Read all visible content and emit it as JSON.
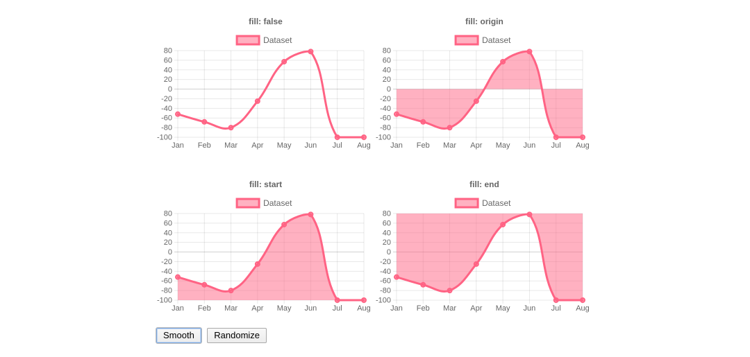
{
  "toolbar": {
    "smooth_label": "Smooth",
    "randomize_label": "Randomize"
  },
  "colors": {
    "line": "#ff6384",
    "fill": "rgba(255, 99, 132, 0.5)",
    "point_fill": "rgba(255, 99, 132, 0.55)",
    "grid": "rgba(0, 0, 0, 0.09)",
    "zero_line": "rgba(0, 0, 0, 0.18)",
    "text": "#666666"
  },
  "chart_data": [
    {
      "type": "line",
      "title": "fill: false",
      "fill_mode": "false",
      "legend": [
        "Dataset"
      ],
      "legend_position": "top",
      "categories": [
        "Jan",
        "Feb",
        "Mar",
        "Apr",
        "May",
        "Jun",
        "Jul",
        "Aug"
      ],
      "series": [
        {
          "name": "Dataset",
          "values": [
            -52,
            -68,
            -80,
            -25,
            57,
            78,
            -100,
            -100
          ]
        }
      ],
      "ylim": [
        -100,
        80
      ],
      "yticks": [
        80,
        60,
        40,
        20,
        0,
        -20,
        -40,
        -60,
        -80,
        -100
      ],
      "grid": true,
      "smooth": true
    },
    {
      "type": "line",
      "title": "fill: origin",
      "fill_mode": "origin",
      "legend": [
        "Dataset"
      ],
      "legend_position": "top",
      "categories": [
        "Jan",
        "Feb",
        "Mar",
        "Apr",
        "May",
        "Jun",
        "Jul",
        "Aug"
      ],
      "series": [
        {
          "name": "Dataset",
          "values": [
            -52,
            -68,
            -80,
            -25,
            57,
            78,
            -100,
            -100
          ]
        }
      ],
      "ylim": [
        -100,
        80
      ],
      "yticks": [
        80,
        60,
        40,
        20,
        0,
        -20,
        -40,
        -60,
        -80,
        -100
      ],
      "grid": true,
      "smooth": true
    },
    {
      "type": "line",
      "title": "fill: start",
      "fill_mode": "start",
      "legend": [
        "Dataset"
      ],
      "legend_position": "top",
      "categories": [
        "Jan",
        "Feb",
        "Mar",
        "Apr",
        "May",
        "Jun",
        "Jul",
        "Aug"
      ],
      "series": [
        {
          "name": "Dataset",
          "values": [
            -52,
            -68,
            -80,
            -25,
            57,
            78,
            -100,
            -100
          ]
        }
      ],
      "ylim": [
        -100,
        80
      ],
      "yticks": [
        80,
        60,
        40,
        20,
        0,
        -20,
        -40,
        -60,
        -80,
        -100
      ],
      "grid": true,
      "smooth": true
    },
    {
      "type": "line",
      "title": "fill: end",
      "fill_mode": "end",
      "legend": [
        "Dataset"
      ],
      "legend_position": "top",
      "categories": [
        "Jan",
        "Feb",
        "Mar",
        "Apr",
        "May",
        "Jun",
        "Jul",
        "Aug"
      ],
      "series": [
        {
          "name": "Dataset",
          "values": [
            -52,
            -68,
            -80,
            -25,
            57,
            78,
            -100,
            -100
          ]
        }
      ],
      "ylim": [
        -100,
        80
      ],
      "yticks": [
        80,
        60,
        40,
        20,
        0,
        -20,
        -40,
        -60,
        -80,
        -100
      ],
      "grid": true,
      "smooth": true
    }
  ]
}
